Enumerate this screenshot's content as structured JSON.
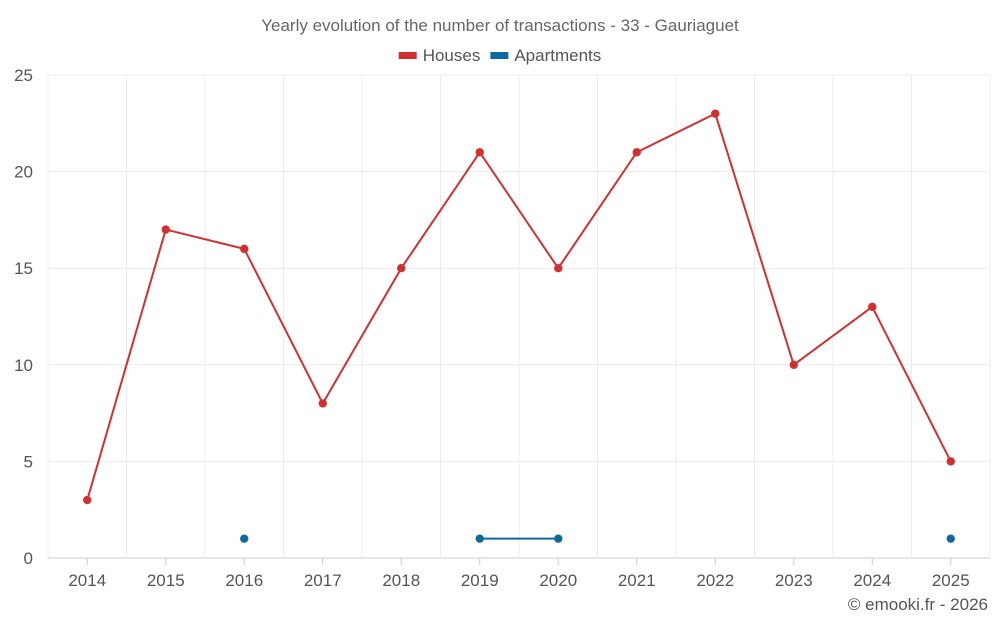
{
  "chart_data": {
    "type": "line",
    "title": "Yearly evolution of the number of transactions - 33 - Gauriaguet",
    "xlabel": "",
    "ylabel": "",
    "categories": [
      "2014",
      "2015",
      "2016",
      "2017",
      "2018",
      "2019",
      "2020",
      "2021",
      "2022",
      "2023",
      "2024",
      "2025"
    ],
    "ylim": [
      0,
      25
    ],
    "yticks": [
      0,
      5,
      10,
      15,
      20,
      25
    ],
    "grid": true,
    "legend_position": "top-center",
    "series": [
      {
        "name": "Houses",
        "color": "#d32f2f",
        "values": [
          3,
          17,
          16,
          8,
          15,
          21,
          15,
          21,
          23,
          10,
          13,
          5
        ]
      },
      {
        "name": "Apartments",
        "color": "#0d6aa0",
        "values": [
          null,
          null,
          1,
          null,
          null,
          1,
          1,
          null,
          null,
          null,
          null,
          1
        ]
      }
    ],
    "credit": "© emooki.fr - 2026"
  }
}
